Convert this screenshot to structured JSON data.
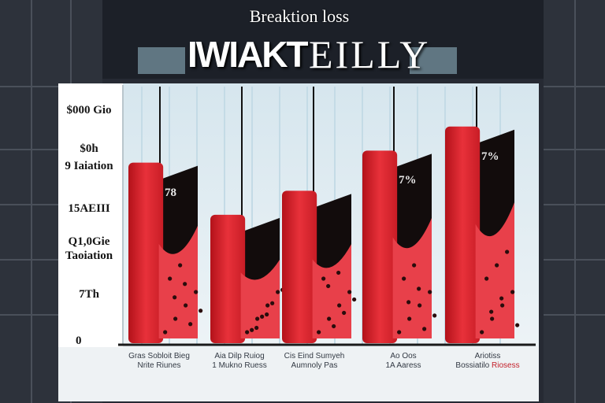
{
  "title_top": "Breaktion loss",
  "title_main_left": "IWIAKT",
  "title_main_right": "EILLY",
  "colors": {
    "bar_red": "#e0262f",
    "bar_dark": "#120c0c",
    "background_dark": "#1f232b",
    "panel_light": "#e6f0f4"
  },
  "y_ticks": [
    "$000 Gio",
    "$0h",
    "9 Iaiation",
    "15AEIII",
    "Q1,0Gie",
    "Taoiation",
    "7Th",
    "0"
  ],
  "x_labels": [
    {
      "l1": "Gras Sobloit Bieg",
      "l2": "Nrite Riunes",
      "accent": ""
    },
    {
      "l1": "Aia Dilp Ruiog",
      "l2": "1 Mukno Ruess",
      "accent": ""
    },
    {
      "l1": "Cis Eind Sumyeh",
      "l2": "Aumnoly Pas",
      "accent": ""
    },
    {
      "l1": "Ao Oos",
      "l2": "1A Aaress",
      "accent": ""
    },
    {
      "l1": "Ariotiss",
      "l2": "Bossiatilo",
      "accent": "Riosess"
    }
  ],
  "chart_data": {
    "type": "bar",
    "title": "Breaktion loss",
    "categories": [
      "Gras Sobloit Bieg",
      "Aia Dilp Ruiog",
      "Cis Eind Sumyeh",
      "Ao Oos",
      "Ariotiss"
    ],
    "values": [
      45,
      32,
      38,
      48,
      54
    ],
    "data_labels": [
      "78",
      "",
      "",
      "7%",
      "7%"
    ],
    "ylim": [
      0,
      62
    ],
    "grid": true
  }
}
